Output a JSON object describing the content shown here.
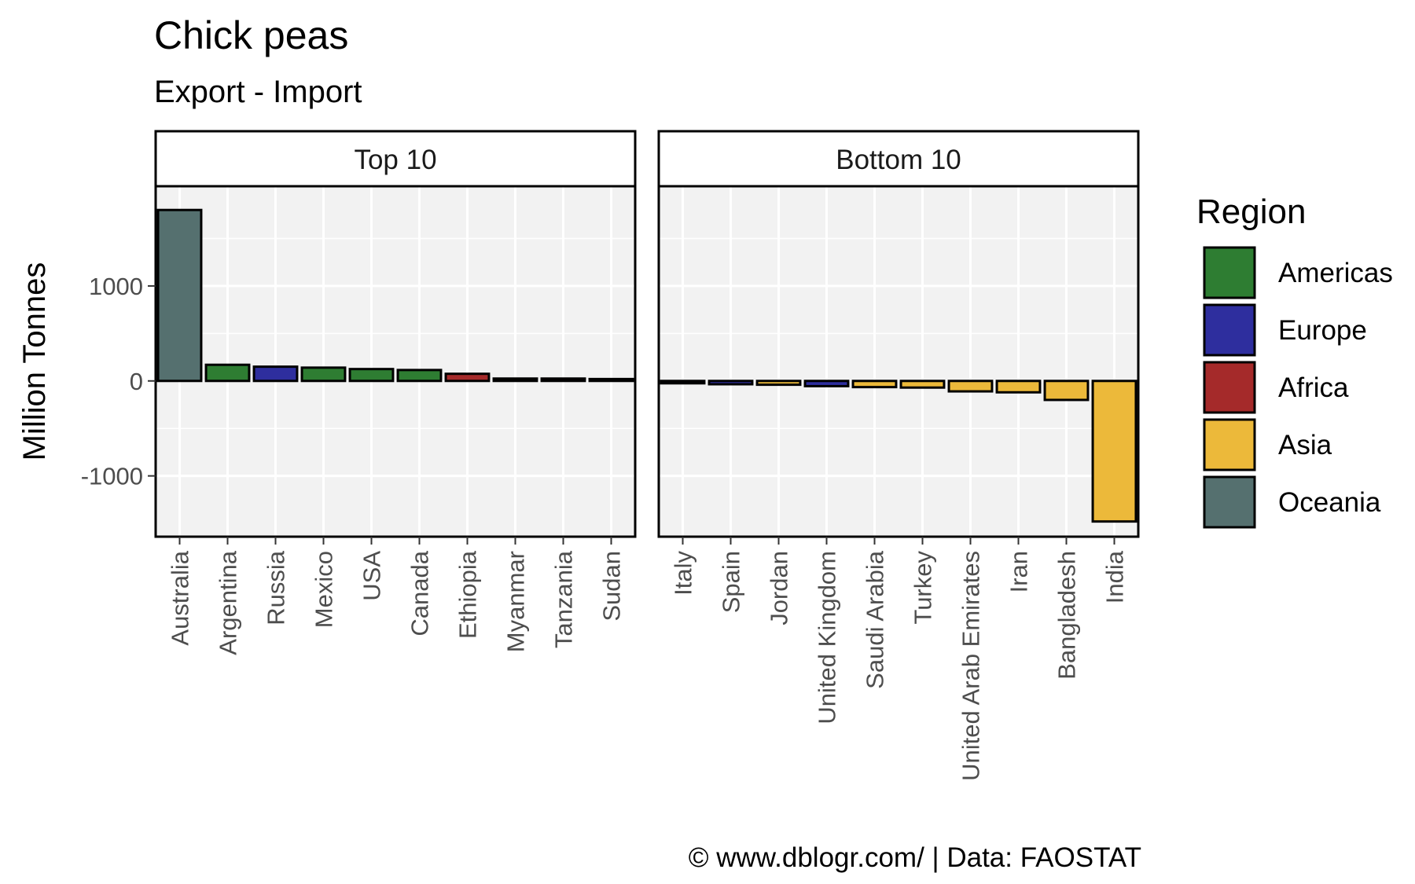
{
  "chart_data": {
    "type": "bar",
    "title": "Chick peas",
    "subtitle": "Export - Import",
    "ylabel": "Million Tonnes",
    "ylim": [
      -1640,
      2050
    ],
    "yticks": [
      {
        "value": 1000,
        "label": "1000"
      },
      {
        "value": 0,
        "label": "0"
      },
      {
        "value": -1000,
        "label": "-1000"
      }
    ],
    "grid": true,
    "legend": {
      "title": "Region",
      "position": "right",
      "items": [
        {
          "name": "Americas",
          "color": "#2e7d32"
        },
        {
          "name": "Europe",
          "color": "#2e2e9e"
        },
        {
          "name": "Africa",
          "color": "#a52a2a"
        },
        {
          "name": "Asia",
          "color": "#ecb93a"
        },
        {
          "name": "Oceania",
          "color": "#55706f"
        }
      ]
    },
    "panels": [
      {
        "label": "Top 10",
        "categories": [
          "Australia",
          "Argentina",
          "Russia",
          "Mexico",
          "USA",
          "Canada",
          "Ethiopia",
          "Myanmar",
          "Tanzania",
          "Sudan"
        ],
        "values": [
          1800,
          170,
          150,
          140,
          125,
          115,
          75,
          25,
          25,
          20
        ],
        "regions": [
          "Oceania",
          "Americas",
          "Europe",
          "Americas",
          "Americas",
          "Americas",
          "Africa",
          "Asia",
          "Africa",
          "Africa"
        ]
      },
      {
        "label": "Bottom 10",
        "categories": [
          "Italy",
          "Spain",
          "Jordan",
          "United Kingdom",
          "Saudi Arabia",
          "Turkey",
          "United Arab Emirates",
          "Iran",
          "Bangladesh",
          "India"
        ],
        "values": [
          -25,
          -35,
          -40,
          -55,
          -65,
          -70,
          -110,
          -120,
          -200,
          -1480
        ],
        "regions": [
          "Europe",
          "Europe",
          "Asia",
          "Europe",
          "Asia",
          "Asia",
          "Asia",
          "Asia",
          "Asia",
          "Asia"
        ]
      }
    ]
  },
  "caption": "© www.dblogr.com/  |  Data: FAOSTAT"
}
